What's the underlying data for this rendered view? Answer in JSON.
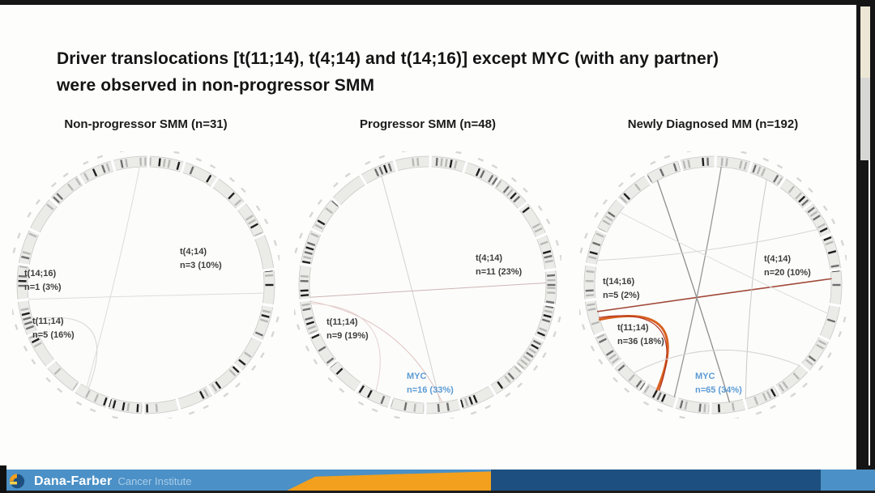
{
  "slide": {
    "title_line1": "Driver translocations [t(11;14), t(4;14) and t(14;16)] except MYC (with any partner)",
    "title_line2": "were observed in non-progressor SMM"
  },
  "chart_data": [
    {
      "type": "circos",
      "title": "Non-progressor SMM (n=31)",
      "group": "Non-progressor SMM",
      "n_total": 31,
      "annotations": [
        {
          "label": "t(4;14)",
          "value": "n=3 (10%)",
          "count": 3,
          "pct": 10,
          "color": "#3d3d3d"
        },
        {
          "label": "t(14;16)",
          "value": "n=1 (3%)",
          "count": 1,
          "pct": 3,
          "color": "#3d3d3d"
        },
        {
          "label": "t(11;14)",
          "value": "n=5 (16%)",
          "count": 5,
          "pct": 16,
          "color": "#3d3d3d"
        }
      ],
      "chords": [
        {
          "a1": 93,
          "a2": 240,
          "k": 0.12,
          "color": "#dcdcdc",
          "w": 1
        },
        {
          "a1": 187,
          "a2": 356,
          "k": 0.06,
          "color": "#dcdcda",
          "w": 1
        },
        {
          "a1": 197,
          "a2": 241,
          "k": 0.7,
          "color": "#d6d6d4",
          "w": 1
        }
      ]
    },
    {
      "type": "circos",
      "title": "Progressor SMM (n=48)",
      "group": "Progressor SMM",
      "n_total": 48,
      "annotations": [
        {
          "label": "t(4;14)",
          "value": "n=11 (23%)",
          "count": 11,
          "pct": 23,
          "color": "#3d3d3d"
        },
        {
          "label": "t(11;14)",
          "value": "n=9 (19%)",
          "count": 9,
          "pct": 19,
          "color": "#3d3d3d"
        },
        {
          "label": "MYC",
          "value": "n=16 (33%)",
          "count": 16,
          "pct": 33,
          "color": "#5b9bd5"
        }
      ],
      "chords": [
        {
          "a1": 113,
          "a2": 276,
          "k": 0.1,
          "color": "#d2d2d0",
          "w": 1
        },
        {
          "a1": 186,
          "a2": 1,
          "k": 0.05,
          "color": "#cdb6b4",
          "w": 1
        },
        {
          "a1": 188,
          "a2": 277,
          "k": 0.5,
          "color": "#dfc0bd",
          "w": 1
        },
        {
          "a1": 189,
          "a2": 244,
          "k": 0.64,
          "color": "#e4d2d0",
          "w": 1
        }
      ]
    },
    {
      "type": "circos",
      "title": "Newly Diagnosed MM (n=192)",
      "group": "Newly Diagnosed MM",
      "n_total": 192,
      "annotations": [
        {
          "label": "t(4;14)",
          "value": "n=20 (10%)",
          "count": 20,
          "pct": 10,
          "color": "#3d3d3d"
        },
        {
          "label": "t(14;16)",
          "value": "n=5 (2%)",
          "count": 5,
          "pct": 2,
          "color": "#3d3d3d"
        },
        {
          "label": "t(11;14)",
          "value": "n=36 (18%)",
          "count": 36,
          "pct": 18,
          "color": "#3d3d3d"
        },
        {
          "label": "MYC",
          "value": "n=65 (34%)",
          "count": 65,
          "pct": 34,
          "color": "#5b9bd5"
        }
      ],
      "chords": [
        {
          "a1": 197,
          "a2": 242,
          "k": 0.78,
          "color": "#d8601f",
          "w": 3
        },
        {
          "a1": 196,
          "a2": 243,
          "k": 0.72,
          "color": "#b0301e",
          "w": 1.2
        },
        {
          "a1": 193,
          "a2": 3,
          "k": 0.05,
          "color": "#a14a38",
          "w": 1.6
        },
        {
          "a1": 118,
          "a2": 278,
          "k": 0.12,
          "color": "#8d8d8d",
          "w": 1.3
        },
        {
          "a1": 86,
          "a2": 251,
          "k": 0.28,
          "color": "#979797",
          "w": 1.3
        },
        {
          "a1": 63,
          "a2": 286,
          "k": 0.2,
          "color": "#c8c8c8",
          "w": 1
        },
        {
          "a1": 168,
          "a2": 28,
          "k": 0.25,
          "color": "#d6d6d6",
          "w": 1
        },
        {
          "a1": 228,
          "a2": 317,
          "k": 0.45,
          "color": "#d2d2d2",
          "w": 1
        },
        {
          "a1": 142,
          "a2": 346,
          "k": 0.12,
          "color": "#dddddd",
          "w": 1
        }
      ]
    }
  ],
  "footer": {
    "brand": "Dana-Farber",
    "brand_suffix": "Cancer Institute",
    "colors": {
      "bar_blue": "#4b90c6",
      "bar_dark_blue": "#1d4f80",
      "bar_orange": "#f2a01e"
    }
  }
}
